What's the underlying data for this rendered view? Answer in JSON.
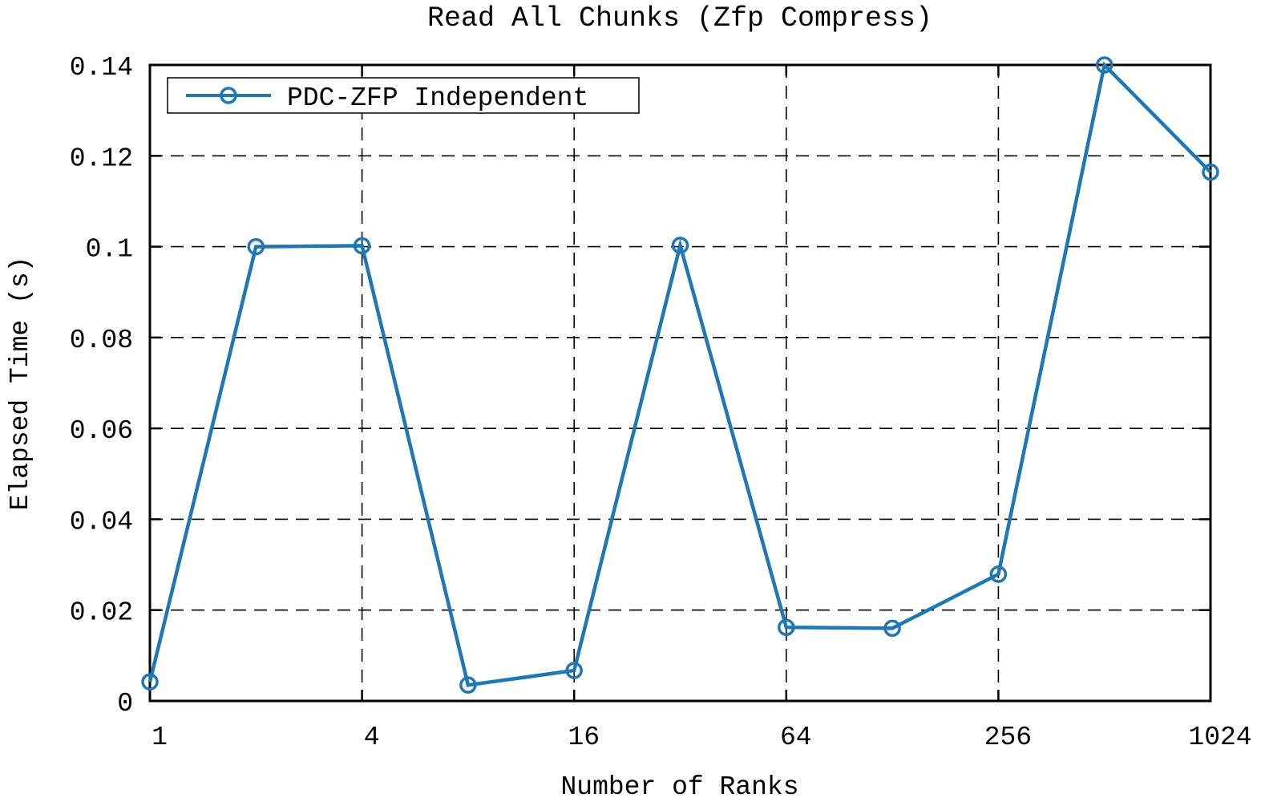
{
  "chart_data": {
    "type": "line",
    "title": "Read All Chunks (Zfp Compress)",
    "xlabel": "Number of Ranks",
    "ylabel": "Elapsed Time (s)",
    "x_scale": "log2",
    "xlim": [
      1,
      1024
    ],
    "ylim": [
      0,
      0.14
    ],
    "x_ticks": [
      1,
      4,
      16,
      64,
      256,
      1024
    ],
    "x_tick_labels": [
      "1",
      "4",
      "16",
      "64",
      "256",
      "1024"
    ],
    "y_ticks": [
      0,
      0.02,
      0.04,
      0.06,
      0.08,
      0.1,
      0.12,
      0.14
    ],
    "y_tick_labels": [
      "0",
      "0.02",
      "0.04",
      "0.06",
      "0.08",
      "0.1",
      "0.12",
      "0.14"
    ],
    "grid": true,
    "legend_position": "top-left",
    "series": [
      {
        "name": "PDC-ZFP Independent",
        "color": "#1f77b4",
        "marker": "circle",
        "x": [
          1,
          2,
          4,
          8,
          16,
          32,
          64,
          128,
          256,
          512,
          1024
        ],
        "values": [
          0.0042,
          0.1,
          0.1002,
          0.0035,
          0.0067,
          0.1003,
          0.0162,
          0.016,
          0.0279,
          0.14,
          0.1164
        ]
      }
    ]
  }
}
